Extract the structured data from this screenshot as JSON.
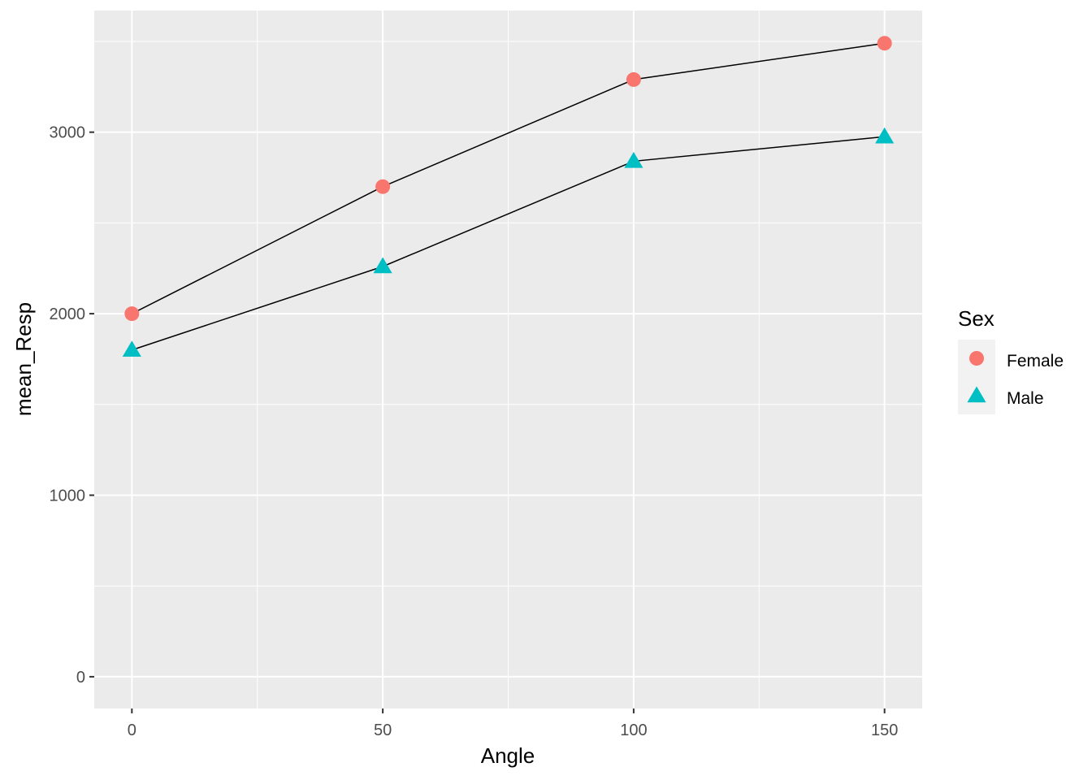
{
  "chart_data": {
    "type": "line",
    "x": [
      0,
      50,
      100,
      150
    ],
    "series": [
      {
        "name": "Female",
        "values": [
          2000,
          2700,
          3290,
          3490
        ],
        "color": "#F8766D",
        "shape": "circle"
      },
      {
        "name": "Male",
        "values": [
          1800,
          2260,
          2840,
          2975
        ],
        "color": "#00BFC4",
        "shape": "triangle"
      }
    ],
    "line_color": "#000000",
    "xlabel": "Angle",
    "ylabel": "mean_Resp",
    "xlim": [
      -7.5,
      157.5
    ],
    "ylim": [
      -175,
      3670
    ],
    "xticks": [
      0,
      50,
      100,
      150
    ],
    "xtick_labels": [
      "0",
      "50",
      "100",
      "150"
    ],
    "xminor": [
      25,
      75,
      125
    ],
    "yticks": [
      0,
      1000,
      2000,
      3000
    ],
    "ytick_labels": [
      "0",
      "1000",
      "2000",
      "3000"
    ],
    "yminor": [
      500,
      1500,
      2500,
      3500
    ],
    "grid": true,
    "panel_background": "#EBEBEB",
    "legend": {
      "title": "Sex",
      "placement": "right",
      "entries": [
        "Female",
        "Male"
      ]
    }
  }
}
